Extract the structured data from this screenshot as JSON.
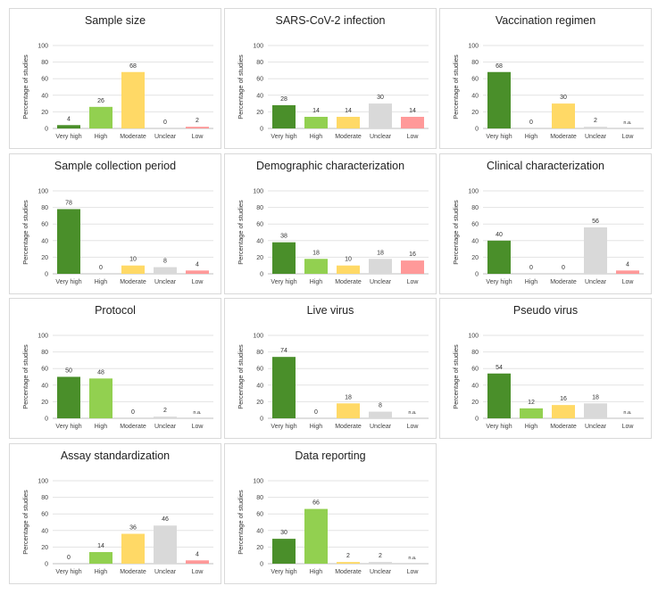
{
  "colors": {
    "very_high": "#4a8f2a",
    "high": "#92d050",
    "moderate": "#ffd966",
    "unclear": "#d9d9d9",
    "low": "#ff9999"
  },
  "ylabel": "Percentage of studies",
  "ylim": [
    0,
    100
  ],
  "yticks": [
    "0",
    "20",
    "40",
    "60",
    "80",
    "100"
  ],
  "chart_data": [
    {
      "type": "bar",
      "title": "Sample size",
      "categories": [
        "Very high",
        "High",
        "Moderate",
        "Unclear",
        "Low"
      ],
      "values": [
        4,
        26,
        68,
        0,
        2
      ],
      "labels": [
        "4",
        "26",
        "68",
        "0",
        "2"
      ],
      "ylabel": "Percentage of studies",
      "ylim": [
        0,
        100
      ]
    },
    {
      "type": "bar",
      "title": "SARS-CoV-2 infection",
      "categories": [
        "Very high",
        "High",
        "Moderate",
        "Unclear",
        "Low"
      ],
      "values": [
        28,
        14,
        14,
        30,
        14
      ],
      "labels": [
        "28",
        "14",
        "14",
        "30",
        "14"
      ],
      "ylabel": "Percentage of studies",
      "ylim": [
        0,
        100
      ]
    },
    {
      "type": "bar",
      "title": "Vaccination regimen",
      "categories": [
        "Very high",
        "High",
        "Moderate",
        "Unclear",
        "Low"
      ],
      "values": [
        68,
        0,
        30,
        2,
        0
      ],
      "labels": [
        "68",
        "0",
        "30",
        "2",
        "n.a."
      ],
      "ylabel": "Percentage of studies",
      "ylim": [
        0,
        100
      ]
    },
    {
      "type": "bar",
      "title": "Sample collection period",
      "categories": [
        "Very high",
        "High",
        "Moderate",
        "Unclear",
        "Low"
      ],
      "values": [
        78,
        0,
        10,
        8,
        4
      ],
      "labels": [
        "78",
        "0",
        "10",
        "8",
        "4"
      ],
      "ylabel": "Percentage of studies",
      "ylim": [
        0,
        100
      ]
    },
    {
      "type": "bar",
      "title": "Demographic characterization",
      "categories": [
        "Very high",
        "High",
        "Moderate",
        "Unclear",
        "Low"
      ],
      "values": [
        38,
        18,
        10,
        18,
        16
      ],
      "labels": [
        "38",
        "18",
        "10",
        "18",
        "16"
      ],
      "ylabel": "Percentage of studies",
      "ylim": [
        0,
        100
      ]
    },
    {
      "type": "bar",
      "title": "Clinical characterization",
      "categories": [
        "Very high",
        "High",
        "Moderate",
        "Unclear",
        "Low"
      ],
      "values": [
        40,
        0,
        0,
        56,
        4
      ],
      "labels": [
        "40",
        "0",
        "0",
        "56",
        "4"
      ],
      "ylabel": "Percentage of studies",
      "ylim": [
        0,
        100
      ]
    },
    {
      "type": "bar",
      "title": "Protocol",
      "categories": [
        "Very high",
        "High",
        "Moderate",
        "Unclear",
        "Low"
      ],
      "values": [
        50,
        48,
        0,
        2,
        0
      ],
      "labels": [
        "50",
        "48",
        "0",
        "2",
        "n.a."
      ],
      "ylabel": "Percentage of studies",
      "ylim": [
        0,
        100
      ]
    },
    {
      "type": "bar",
      "title": "Live virus",
      "categories": [
        "Very high",
        "High",
        "Moderate",
        "Unclear",
        "Low"
      ],
      "values": [
        74,
        0,
        18,
        8,
        0
      ],
      "labels": [
        "74",
        "0",
        "18",
        "8",
        "n.a."
      ],
      "ylabel": "Percentage of studies",
      "ylim": [
        0,
        100
      ]
    },
    {
      "type": "bar",
      "title": "Pseudo virus",
      "categories": [
        "Very high",
        "High",
        "Moderate",
        "Unclear",
        "Low"
      ],
      "values": [
        54,
        12,
        16,
        18,
        0
      ],
      "labels": [
        "54",
        "12",
        "16",
        "18",
        "n.a."
      ],
      "ylabel": "Percentage of studies",
      "ylim": [
        0,
        100
      ]
    },
    {
      "type": "bar",
      "title": "Assay standardization",
      "categories": [
        "Very high",
        "High",
        "Moderate",
        "Unclear",
        "Low"
      ],
      "values": [
        0,
        14,
        36,
        46,
        4
      ],
      "labels": [
        "0",
        "14",
        "36",
        "46",
        "4"
      ],
      "ylabel": "Percentage of studies",
      "ylim": [
        0,
        100
      ]
    },
    {
      "type": "bar",
      "title": "Data reporting",
      "categories": [
        "Very high",
        "High",
        "Moderate",
        "Unclear",
        "Low"
      ],
      "values": [
        30,
        66,
        2,
        2,
        0
      ],
      "labels": [
        "30",
        "66",
        "2",
        "2",
        "n.a."
      ],
      "ylabel": "Percentage of studies",
      "ylim": [
        0,
        100
      ]
    }
  ]
}
